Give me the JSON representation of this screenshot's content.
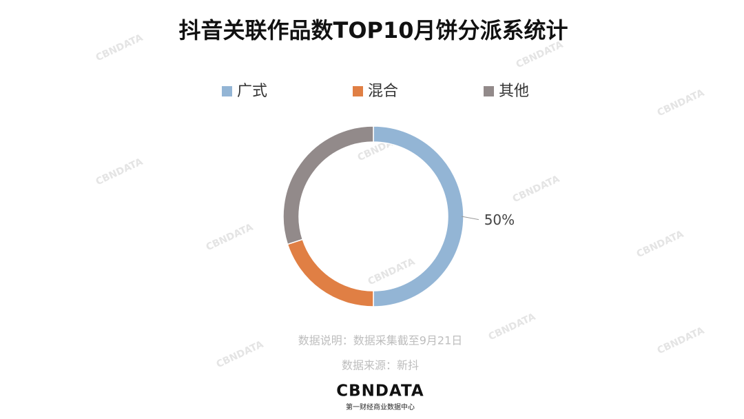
{
  "chart_data": {
    "type": "donut",
    "title": "抖音关联作品数TOP10月饼分派系统计",
    "categories": [
      "广式",
      "混合",
      "其他"
    ],
    "values": [
      50,
      20,
      30
    ],
    "value_labels": [
      "50%",
      null,
      null
    ],
    "colors": [
      "#93b5d5",
      "#e07f44",
      "#928a8a"
    ],
    "legend": "top"
  },
  "footnotes": [
    "数据说明：数据采集截至9月21日",
    "数据来源：新抖"
  ],
  "logo": {
    "name": "CBNDATA",
    "subtitle": "第一财经商业数据中心"
  }
}
